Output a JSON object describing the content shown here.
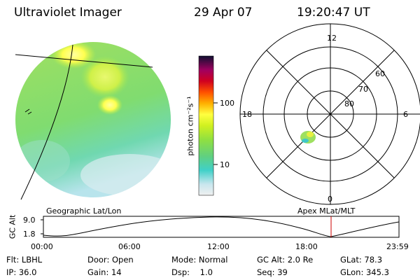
{
  "header": {
    "instrument": "Ultraviolet Imager",
    "date": "29 Apr 07",
    "time": "19:20:47 UT"
  },
  "colorbar": {
    "unit_label": "photon cm⁻²s⁻¹",
    "ticks": [
      "100",
      "10"
    ]
  },
  "polar_plot": {
    "mlt_labels": {
      "top": "12",
      "left": "18",
      "right": "6",
      "bottom": "0"
    },
    "lat_labels": [
      "60",
      "70",
      "80"
    ]
  },
  "orbit_panel": {
    "left_caption": "Geographic Lat/Lon",
    "right_caption": "Apex MLat/MLT",
    "ylabel": "GC Alt",
    "yticks": [
      "9.0",
      "1.8"
    ],
    "xticks": [
      "00:00",
      "06:00",
      "12:00",
      "18:00",
      "23:59"
    ]
  },
  "info": {
    "row1": [
      "Flt: LBHL",
      "Door: Open",
      "Mode: Normal",
      "GC Alt: 2.0 Re",
      "GLat: 78.3"
    ],
    "row2": [
      "IP: 36.0",
      "Gain: 14",
      "Dsp:    1.0",
      "Seq: 39",
      "GLon: 345.3"
    ]
  },
  "colors": {
    "background": "#ffffff",
    "low": "#c8e6ee",
    "mid": "#7fdc5a",
    "high": "#ffff66",
    "cursor": "#cc0000"
  },
  "icons": [
    "auroral-image",
    "colorbar",
    "polar-grid",
    "orbit-altitude-curve"
  ]
}
